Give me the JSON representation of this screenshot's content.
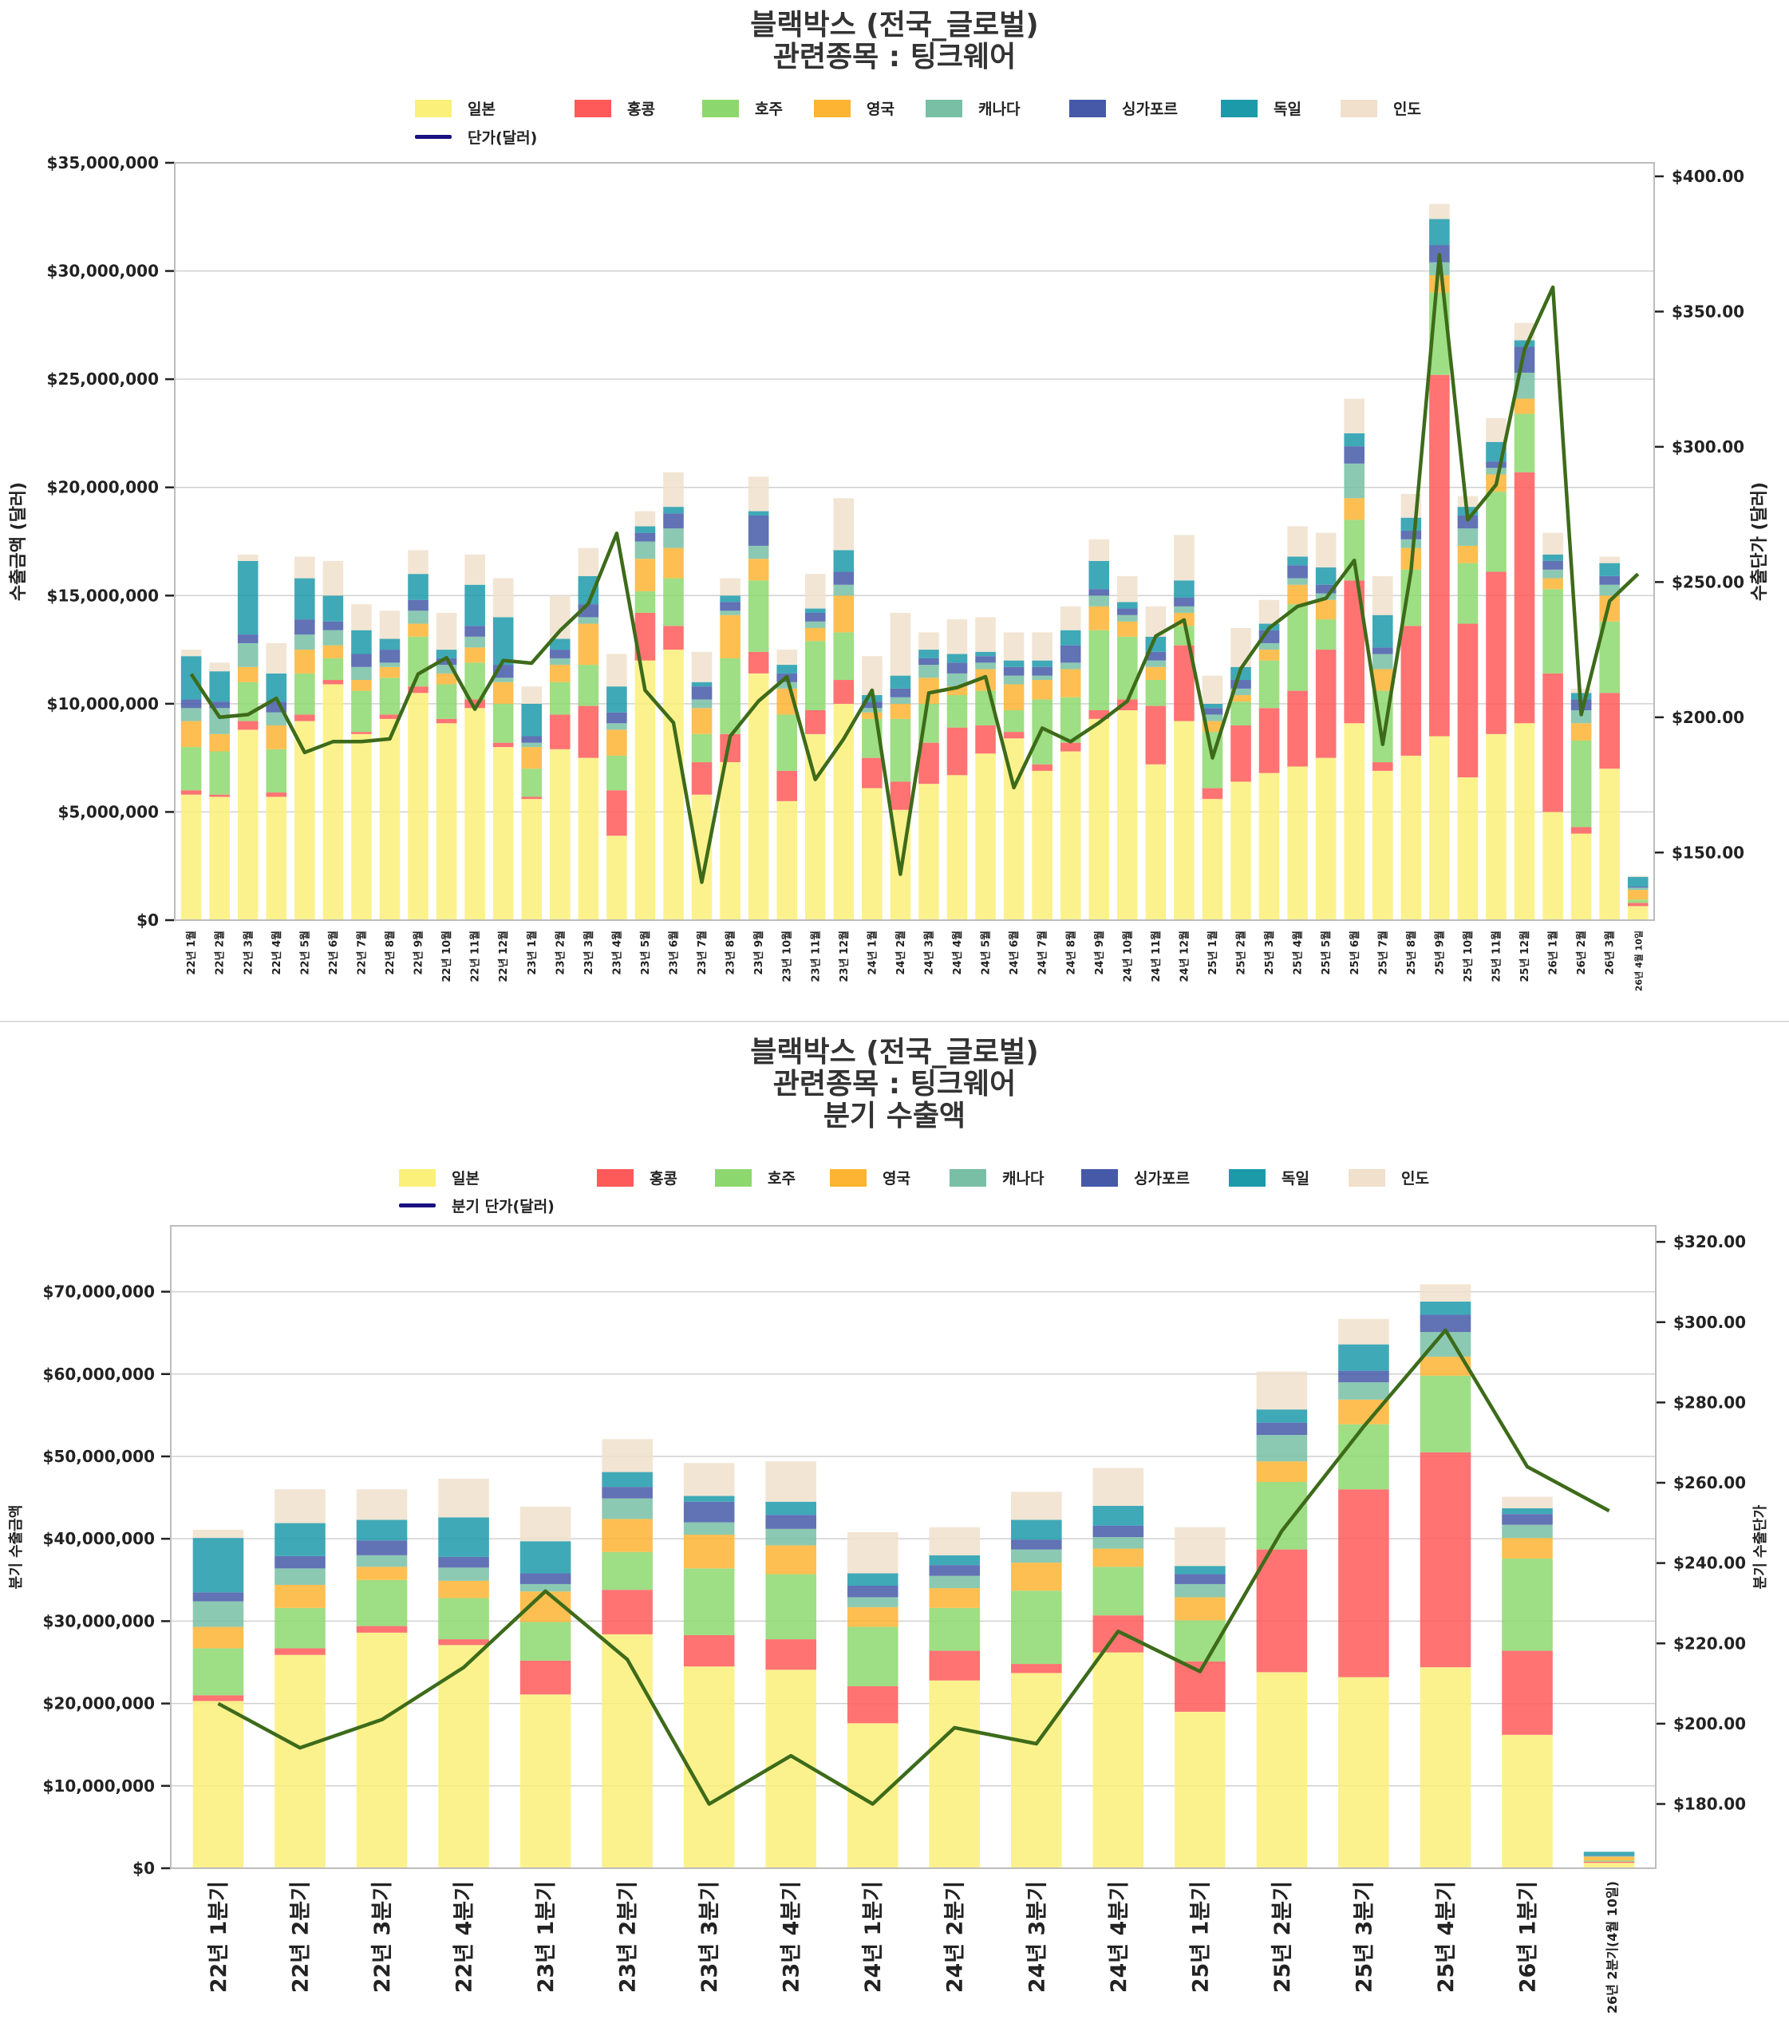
{
  "colors": {
    "일본": "#FAF07A",
    "홍콩": "#FF5A5A",
    "호주": "#8DD86E",
    "영국": "#FDB432",
    "캐나다": "#78BFA5",
    "싱가포르": "#4559A8",
    "독일": "#1D9AAA",
    "인도": "#F0E0CC",
    "line": "#3D6B1A",
    "legend_line": "#1A1080"
  },
  "chart_data": [
    {
      "type": "bar",
      "stacked": true,
      "title_lines": [
        "블랙박스 (전국_글로벌)",
        "관련종목 : 팅크웨어"
      ],
      "xlabel": "",
      "ylabel": "수출금액 (달러)",
      "y2label": "수출단가 (달러)",
      "ylim": [
        0,
        35000000
      ],
      "y2lim": [
        125,
        405
      ],
      "yticks": [
        "$0",
        "$5,000,000",
        "$10,000,000",
        "$15,000,000",
        "$20,000,000",
        "$25,000,000",
        "$30,000,000",
        "$35,000,000"
      ],
      "ytick_values": [
        0,
        5000000,
        10000000,
        15000000,
        20000000,
        25000000,
        30000000,
        35000000
      ],
      "y2ticks": [
        "$150.00",
        "$200.00",
        "$250.00",
        "$300.00",
        "$350.00",
        "$400.00"
      ],
      "y2tick_values": [
        150,
        200,
        250,
        300,
        350,
        400
      ],
      "grid": true,
      "legend_placement": "top-center",
      "legend": [
        "일본",
        "홍콩",
        "호주",
        "영국",
        "캐나다",
        "싱가포르",
        "독일",
        "인도"
      ],
      "line_legend": "단가(달러)",
      "categories": [
        "22년 1월",
        "22년 2월",
        "22년 3월",
        "22년 4월",
        "22년 5월",
        "22년 6월",
        "22년 7월",
        "22년 8월",
        "22년 9월",
        "22년 10월",
        "22년 11월",
        "22년 12월",
        "23년 1월",
        "23년 2월",
        "23년 3월",
        "23년 4월",
        "23년 5월",
        "23년 6월",
        "23년 7월",
        "23년 8월",
        "23년 9월",
        "23년 10월",
        "23년 11월",
        "23년 12월",
        "24년 1월",
        "24년 2월",
        "24년 3월",
        "24년 4월",
        "24년 5월",
        "24년 6월",
        "24년 7월",
        "24년 8월",
        "24년 9월",
        "24년 10월",
        "24년 11월",
        "24년 12월",
        "25년 1월",
        "25년 2월",
        "25년 3월",
        "25년 4월",
        "25년 5월",
        "25년 6월",
        "25년 7월",
        "25년 8월",
        "25년 9월",
        "25년 10월",
        "25년 11월",
        "25년 12월",
        "26년 1월",
        "26년 2월",
        "26년 3월",
        "26년 4월 10일"
      ],
      "series": [
        {
          "name": "일본",
          "values": [
            5.8,
            5.7,
            8.8,
            5.7,
            9.2,
            10.9,
            8.6,
            9.3,
            10.5,
            9.1,
            9.8,
            8.0,
            5.6,
            7.9,
            7.5,
            3.9,
            12.0,
            12.5,
            5.8,
            7.3,
            11.4,
            5.5,
            8.6,
            10.0,
            6.1,
            5.1,
            6.3,
            6.7,
            7.7,
            8.4,
            6.9,
            7.8,
            9.3,
            9.7,
            7.2,
            9.2,
            5.6,
            6.4,
            6.8,
            7.1,
            7.5,
            9.1,
            6.9,
            7.6,
            8.5,
            6.6,
            8.6,
            9.1,
            5.0,
            4.0,
            7.0,
            0.65
          ]
        },
        {
          "name": "홍콩",
          "values": [
            0.2,
            0.1,
            0.4,
            0.2,
            0.3,
            0.2,
            0.1,
            0.2,
            0.3,
            0.2,
            0.4,
            0.2,
            0.1,
            1.6,
            2.4,
            2.1,
            2.2,
            1.1,
            1.5,
            1.3,
            1.0,
            1.4,
            1.1,
            1.1,
            1.4,
            1.3,
            1.9,
            2.2,
            1.3,
            0.3,
            0.3,
            0.4,
            0.4,
            0.5,
            2.7,
            3.5,
            0.5,
            2.6,
            3.0,
            3.5,
            5.0,
            6.6,
            0.4,
            6.0,
            16.7,
            7.1,
            7.5,
            11.6,
            6.4,
            0.3,
            3.5,
            0.15
          ]
        },
        {
          "name": "호주",
          "values": [
            2.0,
            2.0,
            1.8,
            2.0,
            1.9,
            1.0,
            1.9,
            1.7,
            2.3,
            1.6,
            1.7,
            1.8,
            1.3,
            1.5,
            1.9,
            1.6,
            1.0,
            2.2,
            1.3,
            3.5,
            3.3,
            2.6,
            3.2,
            2.2,
            1.8,
            2.9,
            1.8,
            1.5,
            1.6,
            1.0,
            3.0,
            2.1,
            3.7,
            2.9,
            1.2,
            0.9,
            2.6,
            1.1,
            2.2,
            4.0,
            1.4,
            2.8,
            3.3,
            2.6,
            3.8,
            2.8,
            3.7,
            2.7,
            3.9,
            4.0,
            3.3,
            0.15
          ]
        },
        {
          "name": "영국",
          "values": [
            1.2,
            0.8,
            0.7,
            1.1,
            1.1,
            0.6,
            0.5,
            0.5,
            0.6,
            0.5,
            0.7,
            1.0,
            1.0,
            0.8,
            1.9,
            1.2,
            1.5,
            1.4,
            1.2,
            2.0,
            1.0,
            1.2,
            0.6,
            1.7,
            0.3,
            0.7,
            1.2,
            0.4,
            1.0,
            1.2,
            0.9,
            1.3,
            1.1,
            0.7,
            0.6,
            0.6,
            0.5,
            0.3,
            0.5,
            0.9,
            0.9,
            1.0,
            1.0,
            1.0,
            0.8,
            0.8,
            0.8,
            0.7,
            0.5,
            0.8,
            1.2,
            0.45
          ]
        },
        {
          "name": "캐나다",
          "values": [
            0.6,
            1.2,
            1.1,
            0.6,
            0.7,
            0.7,
            0.6,
            0.2,
            0.6,
            0.4,
            0.5,
            0.2,
            0.2,
            0.3,
            0.3,
            0.3,
            0.8,
            0.9,
            0.4,
            0.2,
            0.6,
            0.3,
            0.3,
            0.5,
            0.2,
            0.3,
            0.6,
            0.6,
            0.3,
            0.4,
            0.2,
            0.3,
            0.5,
            0.3,
            0.3,
            0.3,
            0.3,
            0.3,
            0.3,
            0.3,
            0.3,
            1.6,
            0.7,
            0.4,
            0.6,
            0.8,
            0.3,
            1.2,
            0.4,
            0.6,
            0.5,
            0.1
          ]
        },
        {
          "name": "싱가포르",
          "values": [
            0.4,
            0.3,
            0.4,
            0.5,
            0.7,
            0.4,
            0.6,
            0.6,
            0.5,
            0.3,
            0.5,
            0.6,
            0.3,
            0.4,
            0.6,
            0.5,
            0.4,
            0.7,
            0.6,
            0.4,
            1.4,
            0.4,
            0.4,
            0.6,
            0.3,
            0.4,
            0.3,
            0.5,
            0.3,
            0.4,
            0.4,
            0.8,
            0.3,
            0.3,
            0.4,
            0.4,
            0.3,
            0.4,
            0.6,
            0.6,
            0.4,
            0.8,
            0.3,
            0.4,
            0.8,
            0.6,
            0.3,
            1.2,
            0.4,
            0.5,
            0.4,
            0.05
          ]
        },
        {
          "name": "독일",
          "values": [
            2.0,
            1.4,
            3.4,
            1.3,
            1.9,
            1.2,
            1.1,
            0.5,
            1.2,
            0.4,
            1.9,
            2.2,
            1.5,
            0.5,
            1.3,
            1.2,
            0.3,
            0.3,
            0.2,
            0.3,
            0.2,
            0.4,
            0.2,
            1.0,
            0.3,
            0.6,
            0.4,
            0.4,
            0.2,
            0.3,
            0.3,
            0.7,
            1.3,
            0.3,
            0.7,
            0.8,
            0.2,
            0.6,
            0.3,
            0.4,
            0.8,
            0.6,
            1.5,
            0.6,
            1.2,
            0.4,
            0.9,
            0.3,
            0.3,
            0.3,
            0.6,
            0.45
          ]
        },
        {
          "name": "인도",
          "values": [
            0.3,
            0.4,
            0.3,
            1.4,
            1.0,
            1.6,
            1.2,
            1.3,
            1.1,
            1.7,
            1.4,
            1.8,
            0.8,
            2.0,
            1.3,
            1.5,
            0.7,
            1.6,
            1.4,
            0.8,
            1.6,
            0.7,
            1.6,
            2.4,
            1.8,
            2.9,
            0.8,
            1.6,
            1.6,
            1.3,
            1.3,
            1.1,
            1.0,
            1.2,
            1.4,
            2.1,
            1.3,
            1.8,
            1.1,
            1.4,
            1.6,
            1.6,
            1.8,
            1.1,
            0.7,
            0.5,
            1.1,
            0.8,
            1.0,
            0.2,
            0.3,
            0.05
          ]
        }
      ],
      "value_unit": "USD millions",
      "line": {
        "name": "단가(달러)",
        "values": [
          216,
          200,
          201,
          207,
          187,
          191,
          191,
          192,
          216,
          222,
          203,
          221,
          220,
          232,
          242,
          268,
          210,
          198,
          139,
          193,
          206,
          215,
          177,
          192,
          210,
          142,
          209,
          211,
          215,
          174,
          196,
          191,
          198,
          206,
          230,
          236,
          185,
          218,
          233,
          241,
          244,
          258,
          190,
          254,
          371,
          273,
          286,
          336,
          359,
          201,
          243,
          253
        ]
      }
    },
    {
      "type": "bar",
      "stacked": true,
      "title_lines": [
        "블랙박스 (전국_글로벌)",
        "관련종목 : 팅크웨어",
        "분기 수출액"
      ],
      "xlabel": "",
      "ylabel": "분기 수출금액",
      "y2label": "분기 수출단가",
      "ylim": [
        0,
        78000000
      ],
      "y2lim": [
        164,
        324
      ],
      "yticks": [
        "$0",
        "$10,000,000",
        "$20,000,000",
        "$30,000,000",
        "$40,000,000",
        "$50,000,000",
        "$60,000,000",
        "$70,000,000"
      ],
      "ytick_values": [
        0,
        10000000,
        20000000,
        30000000,
        40000000,
        50000000,
        60000000,
        70000000
      ],
      "y2ticks": [
        "$180.00",
        "$200.00",
        "$220.00",
        "$240.00",
        "$260.00",
        "$280.00",
        "$300.00",
        "$320.00"
      ],
      "y2tick_values": [
        180,
        200,
        220,
        240,
        260,
        280,
        300,
        320
      ],
      "grid": true,
      "legend_placement": "top-center",
      "legend": [
        "일본",
        "홍콩",
        "호주",
        "영국",
        "캐나다",
        "싱가포르",
        "독일",
        "인도"
      ],
      "line_legend": "분기 단가(달러)",
      "categories": [
        "22년 1분기",
        "22년 2분기",
        "22년 3분기",
        "22년 4분기",
        "23년 1분기",
        "23년 2분기",
        "23년 3분기",
        "23년 4분기",
        "24년 1분기",
        "24년 2분기",
        "24년 3분기",
        "24년 4분기",
        "25년 1분기",
        "25년 2분기",
        "25년 3분기",
        "25년 4분기",
        "26년 1분기",
        "26년 2분기(4월 10일)"
      ],
      "series": [
        {
          "name": "일본",
          "values": [
            20.3,
            25.9,
            28.6,
            27.1,
            21.1,
            28.4,
            24.5,
            24.1,
            17.6,
            22.8,
            23.7,
            26.2,
            19.0,
            23.8,
            23.2,
            24.4,
            16.2,
            0.65
          ]
        },
        {
          "name": "홍콩",
          "values": [
            0.7,
            0.8,
            0.8,
            0.7,
            4.1,
            5.4,
            3.8,
            3.7,
            4.5,
            3.6,
            1.1,
            4.5,
            6.1,
            14.9,
            22.8,
            26.1,
            10.2,
            0.15
          ]
        },
        {
          "name": "호주",
          "values": [
            5.7,
            4.9,
            5.6,
            5.0,
            4.7,
            4.6,
            8.1,
            7.9,
            7.2,
            5.2,
            8.9,
            5.9,
            5.0,
            8.2,
            7.9,
            9.3,
            11.2,
            0.15
          ]
        },
        {
          "name": "영국",
          "values": [
            2.6,
            2.8,
            1.6,
            2.1,
            3.7,
            4.0,
            4.1,
            3.5,
            2.4,
            2.4,
            3.4,
            2.2,
            2.8,
            2.5,
            3.0,
            2.3,
            2.5,
            0.45
          ]
        },
        {
          "name": "캐나다",
          "values": [
            3.1,
            2.0,
            1.4,
            1.6,
            0.9,
            2.5,
            1.5,
            2.0,
            1.2,
            1.5,
            1.6,
            1.4,
            1.6,
            3.2,
            2.1,
            3.0,
            1.6,
            0.1
          ]
        },
        {
          "name": "싱가포르",
          "values": [
            1.1,
            1.5,
            1.8,
            1.3,
            1.3,
            1.4,
            2.5,
            1.7,
            1.4,
            1.3,
            1.2,
            1.4,
            1.2,
            1.5,
            1.4,
            2.1,
            1.3,
            0.05
          ]
        },
        {
          "name": "독일",
          "values": [
            6.6,
            4.0,
            2.5,
            4.8,
            3.9,
            1.8,
            0.7,
            1.6,
            1.5,
            1.2,
            2.4,
            2.4,
            1.0,
            1.6,
            3.2,
            1.6,
            0.7,
            0.45
          ]
        },
        {
          "name": "인도",
          "values": [
            1.0,
            4.1,
            3.7,
            4.7,
            4.2,
            4.0,
            4.0,
            4.9,
            5.0,
            3.4,
            3.4,
            4.6,
            4.7,
            4.6,
            3.1,
            2.1,
            1.4,
            0.05
          ]
        }
      ],
      "value_unit": "USD millions",
      "line": {
        "name": "분기 단가(달러)",
        "values": [
          205,
          194,
          201,
          214,
          233,
          216,
          180,
          192,
          180,
          199,
          195,
          223,
          213,
          248,
          274,
          298,
          264,
          253
        ]
      }
    }
  ]
}
